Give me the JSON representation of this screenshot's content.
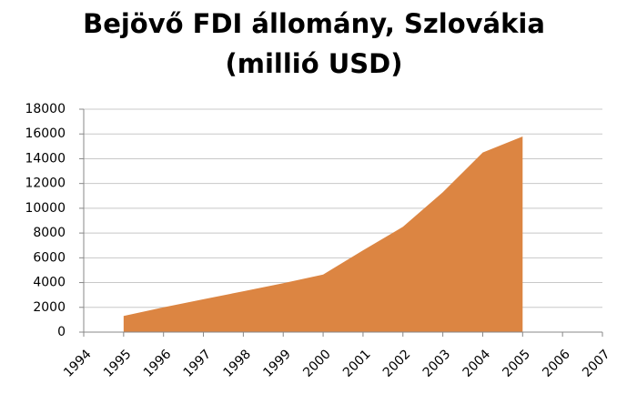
{
  "chart_data": {
    "type": "area",
    "title": "Bejövő FDI állomány, Szlovákia",
    "subtitle": "(millió USD)",
    "categories": [
      "1994",
      "1995",
      "1996",
      "1997",
      "1998",
      "1999",
      "2000",
      "2001",
      "2002",
      "2003",
      "2004",
      "2005",
      "2006",
      "2007"
    ],
    "series": [
      {
        "color": "#dc8542",
        "values": [
          null,
          1300,
          2000,
          2650,
          3300,
          3950,
          4650,
          6600,
          8500,
          11300,
          14500,
          15800,
          null,
          null
        ]
      }
    ],
    "ylim": [
      0,
      18000
    ],
    "yticks": [
      0,
      2000,
      4000,
      6000,
      8000,
      10000,
      12000,
      14000,
      16000,
      18000
    ],
    "grid": true
  }
}
